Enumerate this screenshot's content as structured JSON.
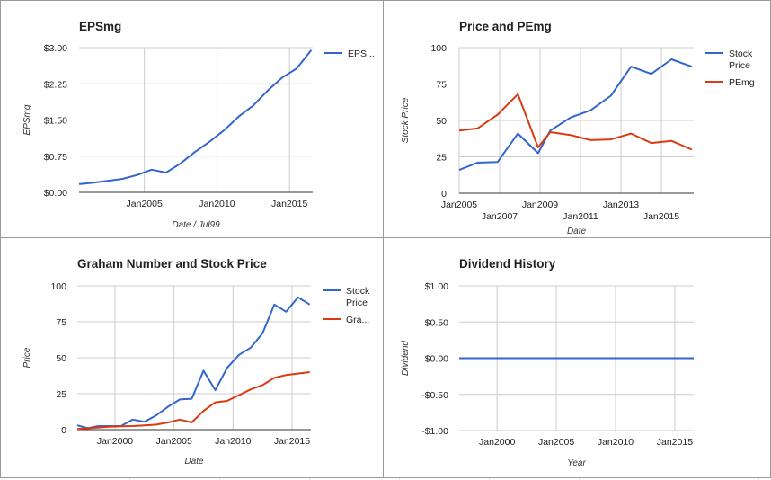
{
  "chart_data": [
    {
      "id": "eps",
      "type": "line",
      "title": "EPSmg",
      "xlabel": "Date / Jul99",
      "ylabel": "EPSmg",
      "x_ticks": [
        2005,
        2010,
        2015
      ],
      "x_tick_labels": [
        "Jan2005",
        "Jan2010",
        "Jan2015"
      ],
      "xlim": [
        2000.5,
        2016.6
      ],
      "y_ticks": [
        0,
        0.75,
        1.5,
        2.25,
        3.0
      ],
      "y_tick_labels": [
        "$0.00",
        "$0.75",
        "$1.50",
        "$2.25",
        "$3.00"
      ],
      "ylim": [
        0,
        3.0
      ],
      "legend_position": "right",
      "series": [
        {
          "name": "EPS...",
          "color": "#3366cc",
          "x": [
            2000.5,
            2001.5,
            2002.5,
            2003.5,
            2004.5,
            2005.5,
            2006.5,
            2007.5,
            2008.5,
            2009.5,
            2010.5,
            2011.5,
            2012.5,
            2013.5,
            2014.5,
            2015.5,
            2016.5
          ],
          "y": [
            0.17,
            0.2,
            0.24,
            0.28,
            0.36,
            0.47,
            0.41,
            0.6,
            0.84,
            1.05,
            1.29,
            1.57,
            1.8,
            2.11,
            2.38,
            2.57,
            2.95
          ]
        }
      ]
    },
    {
      "id": "price_pe",
      "type": "line",
      "title": "Price and PEmg",
      "xlabel": "Date",
      "ylabel": "Stock Price",
      "x_ticks": [
        2005,
        2007,
        2009,
        2011,
        2013,
        2015
      ],
      "x_tick_labels": [
        "Jan2005",
        "Jan2007",
        "Jan2009",
        "Jan2011",
        "Jan2013",
        "Jan2015"
      ],
      "x_tick_staggered": true,
      "xlim": [
        2005,
        2016.6
      ],
      "y_ticks": [
        0,
        25,
        50,
        75,
        100
      ],
      "y_tick_labels": [
        "0",
        "25",
        "50",
        "75",
        "100"
      ],
      "ylim": [
        0,
        100
      ],
      "legend_position": "right",
      "series": [
        {
          "name": "Stock Price",
          "color": "#3366cc",
          "x": [
            2005,
            2005.9,
            2006.9,
            2007.9,
            2008.9,
            2009.5,
            2010.5,
            2011.5,
            2012.5,
            2013.5,
            2014.5,
            2015.5,
            2016.5
          ],
          "y": [
            16,
            21,
            21.5,
            41,
            27.5,
            43,
            52,
            57,
            67,
            87,
            82,
            92,
            87
          ]
        },
        {
          "name": "PEmg",
          "color": "#dc3912",
          "x": [
            2005,
            2005.9,
            2006.9,
            2007.9,
            2008.9,
            2009.5,
            2010.5,
            2011.5,
            2012.5,
            2013.5,
            2014.5,
            2015.5,
            2016.5
          ],
          "y": [
            43,
            44.5,
            54,
            68,
            31.5,
            42,
            40,
            36.5,
            37,
            41,
            34.5,
            36,
            30
          ]
        }
      ]
    },
    {
      "id": "graham",
      "type": "line",
      "title": "Graham Number and Stock Price",
      "xlabel": "Date",
      "ylabel": "Price",
      "x_ticks": [
        2000,
        2005,
        2010,
        2015
      ],
      "x_tick_labels": [
        "Jan2000",
        "Jan2005",
        "Jan2010",
        "Jan2015"
      ],
      "xlim": [
        1996.8,
        2016.6
      ],
      "y_ticks": [
        0,
        25,
        50,
        75,
        100
      ],
      "y_tick_labels": [
        "0",
        "25",
        "50",
        "75",
        "100"
      ],
      "ylim": [
        0,
        100
      ],
      "legend_position": "right",
      "series": [
        {
          "name": "Stock Price",
          "color": "#3366cc",
          "x": [
            1996.8,
            1997.7,
            1998.6,
            1999.5,
            2000.5,
            2001.5,
            2002.5,
            2003.5,
            2004.5,
            2005.5,
            2006.5,
            2007.5,
            2008.5,
            2009.5,
            2010.5,
            2011.5,
            2012.5,
            2013.5,
            2014.5,
            2015.5,
            2016.5
          ],
          "y": [
            3,
            1,
            2.5,
            2.5,
            2.5,
            7,
            5.5,
            10,
            16,
            21,
            21.5,
            41,
            27.5,
            43,
            52,
            57,
            67,
            87,
            82,
            92,
            87
          ]
        },
        {
          "name": "Gra...",
          "color": "#dc3912",
          "x": [
            1996.8,
            1997.7,
            1998.6,
            1999.5,
            2000.5,
            2001.5,
            2002.5,
            2003.5,
            2004.5,
            2005.5,
            2006.5,
            2007.5,
            2008.5,
            2009.5,
            2010.5,
            2011.5,
            2012.5,
            2013.5,
            2014.5,
            2015.5,
            2016.5
          ],
          "y": [
            0.5,
            1,
            1.5,
            2,
            2.3,
            2.5,
            3,
            3.5,
            5,
            7,
            5,
            13,
            19,
            20,
            24,
            28,
            31,
            36,
            38,
            39,
            40
          ]
        }
      ]
    },
    {
      "id": "dividend",
      "type": "line",
      "title": "Dividend History",
      "xlabel": "Year",
      "ylabel": "Dividend",
      "x_ticks": [
        2000,
        2005,
        2010,
        2015
      ],
      "x_tick_labels": [
        "Jan2000",
        "Jan2005",
        "Jan2010",
        "Jan2015"
      ],
      "xlim": [
        1996.8,
        2016.6
      ],
      "y_ticks": [
        -1,
        -0.5,
        0,
        0.5,
        1
      ],
      "y_tick_labels": [
        "-$1.00",
        "-$0.50",
        "$0.00",
        "$0.50",
        "$1.00"
      ],
      "ylim": [
        -1,
        1
      ],
      "legend_position": "none",
      "series": [
        {
          "color": "#3366cc",
          "x": [
            1996.8,
            2016.6
          ],
          "y": [
            0,
            0
          ]
        }
      ]
    }
  ]
}
